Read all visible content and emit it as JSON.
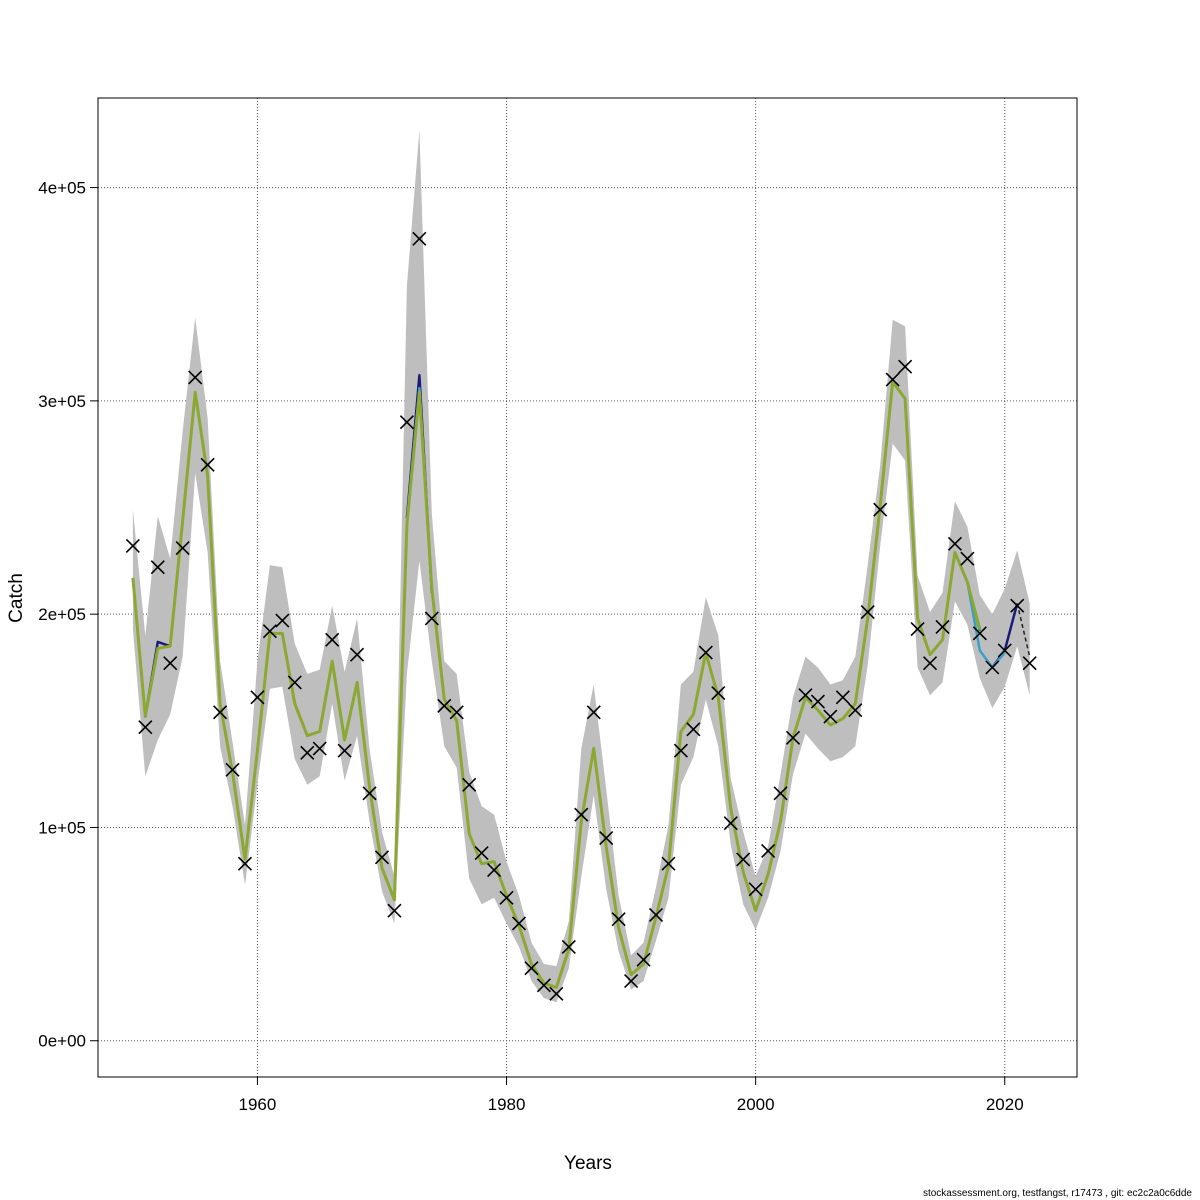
{
  "chart_data": {
    "type": "line",
    "title": "",
    "xlabel": "Years",
    "ylabel": "Catch",
    "xlim": [
      1947.2,
      2025.8
    ],
    "ylim": [
      -17000,
      442000
    ],
    "x_ticks": [
      1960,
      1980,
      2000,
      2020
    ],
    "x_tick_labels": [
      "1960",
      "1980",
      "2000",
      "2020"
    ],
    "y_ticks": [
      0,
      100000,
      200000,
      300000,
      400000
    ],
    "y_tick_labels": [
      "0e+00",
      "1e+05",
      "2e+05",
      "3e+05",
      "4e+05"
    ],
    "grid": true,
    "colors": {
      "band": "#bebebe",
      "estimate": "#8aa832",
      "peel_lines": [
        "#1b1b7a",
        "#3aa0c8",
        "#1f9a7a",
        "#2f8fb0"
      ],
      "observed_marker": "#000000"
    },
    "years": [
      1950,
      1951,
      1952,
      1953,
      1954,
      1955,
      1956,
      1957,
      1958,
      1959,
      1960,
      1961,
      1962,
      1963,
      1964,
      1965,
      1966,
      1967,
      1968,
      1969,
      1970,
      1971,
      1972,
      1973,
      1974,
      1975,
      1976,
      1977,
      1978,
      1979,
      1980,
      1981,
      1982,
      1983,
      1984,
      1985,
      1986,
      1987,
      1988,
      1989,
      1990,
      1991,
      1992,
      1993,
      1994,
      1995,
      1996,
      1997,
      1998,
      1999,
      2000,
      2001,
      2002,
      2003,
      2004,
      2005,
      2006,
      2007,
      2008,
      2009,
      2010,
      2011,
      2012,
      2013,
      2014,
      2015,
      2016,
      2017,
      2018,
      2019,
      2020,
      2021,
      2022
    ],
    "series": [
      {
        "kind": "observed",
        "marker": "x",
        "values": [
          232000,
          147000,
          222000,
          177000,
          231000,
          311000,
          270000,
          154000,
          127000,
          83000,
          161000,
          192000,
          197000,
          168000,
          135000,
          137000,
          188000,
          136000,
          181000,
          116000,
          86000,
          61000,
          290000,
          376000,
          198000,
          157000,
          154000,
          120000,
          88000,
          80000,
          67000,
          55000,
          34000,
          26000,
          22000,
          44000,
          106000,
          154000,
          95000,
          57000,
          28000,
          38000,
          59000,
          83000,
          136000,
          146000,
          182000,
          163000,
          102000,
          85000,
          71000,
          89000,
          116000,
          142000,
          162000,
          159000,
          152000,
          161000,
          155000,
          201000,
          249000,
          310000,
          316000,
          193000,
          177000,
          194000,
          233000,
          226000,
          191000,
          175000,
          183000,
          204000,
          177000
        ]
      },
      {
        "kind": "estimate",
        "values": [
          217000,
          152000,
          184000,
          185000,
          244000,
          304000,
          265000,
          158000,
          126000,
          85000,
          136000,
          191000,
          191000,
          158000,
          143000,
          145000,
          178000,
          141000,
          168000,
          119000,
          81000,
          66000,
          242000,
          304000,
          212000,
          160000,
          150000,
          97000,
          83000,
          84000,
          68000,
          54000,
          36000,
          27000,
          25000,
          43000,
          103000,
          137000,
          91000,
          53000,
          31000,
          36000,
          58000,
          82000,
          145000,
          153000,
          182000,
          161000,
          109000,
          79000,
          61000,
          78000,
          103000,
          142000,
          161000,
          155000,
          148000,
          151000,
          158000,
          198000,
          251000,
          309000,
          301000,
          198000,
          181000,
          188000,
          229000,
          215000,
          193000,
          null,
          null,
          null,
          null
        ],
        "upper": [
          249000,
          190000,
          246000,
          226000,
          286000,
          339000,
          292000,
          178000,
          140000,
          101000,
          178000,
          223000,
          222000,
          186000,
          172000,
          174000,
          204000,
          173000,
          198000,
          137000,
          98000,
          77000,
          354000,
          427000,
          247000,
          178000,
          172000,
          126000,
          110000,
          106000,
          84000,
          68000,
          46000,
          36000,
          35000,
          56000,
          137000,
          167000,
          118000,
          68000,
          40000,
          46000,
          72000,
          101000,
          167000,
          173000,
          208000,
          190000,
          123000,
          98000,
          77000,
          91000,
          125000,
          161000,
          180000,
          175000,
          167000,
          169000,
          180000,
          223000,
          270000,
          338000,
          335000,
          218000,
          201000,
          210000,
          253000,
          241000,
          209000,
          200000,
          212000,
          230000,
          205000
        ],
        "lower": [
          193000,
          124000,
          141000,
          153000,
          180000,
          266000,
          229000,
          138000,
          110000,
          73000,
          120000,
          165000,
          166000,
          132000,
          120000,
          124000,
          158000,
          122000,
          143000,
          103000,
          70000,
          55000,
          172000,
          225000,
          178000,
          138000,
          128000,
          76000,
          64000,
          67000,
          55000,
          44000,
          28000,
          20000,
          18000,
          34000,
          77000,
          115000,
          71000,
          42000,
          24000,
          28000,
          47000,
          67000,
          120000,
          133000,
          160000,
          138000,
          92000,
          64000,
          52000,
          67000,
          89000,
          125000,
          144000,
          137000,
          131000,
          133000,
          138000,
          176000,
          232000,
          280000,
          272000,
          175000,
          162000,
          168000,
          206000,
          195000,
          170000,
          156000,
          166000,
          185000,
          162000
        ]
      },
      {
        "kind": "peel",
        "color": "#1b1b7a",
        "points": [
          [
            1951,
            152000
          ],
          [
            1952,
            187000
          ],
          [
            1953,
            185000
          ],
          [
            1972,
            245000
          ],
          [
            1973,
            312000
          ],
          [
            1974,
            210000
          ],
          [
            2019,
            175000
          ],
          [
            2020,
            183000
          ],
          [
            2021,
            205000
          ]
        ]
      },
      {
        "kind": "peel",
        "color": "#3aa0c8",
        "points": [
          [
            1972,
            242000
          ],
          [
            1973,
            306000
          ],
          [
            1974,
            211000
          ],
          [
            2017,
            215000
          ],
          [
            2018,
            183000
          ],
          [
            2019,
            175000
          ],
          [
            2020,
            182000
          ]
        ]
      },
      {
        "kind": "peel",
        "color": "#1f9a7a",
        "points": [
          [
            2016,
            229000
          ],
          [
            2017,
            215000
          ],
          [
            2018,
            192000
          ]
        ]
      },
      {
        "kind": "peel",
        "color": "#222222",
        "dashed": true,
        "points": [
          [
            2021,
            205000
          ],
          [
            2022,
            180000
          ]
        ]
      }
    ]
  },
  "footer": "stockassessment.org, testfangst, r17473 , git: ec2c2a0c6dde"
}
